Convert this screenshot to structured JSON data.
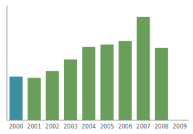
{
  "chart_data": {
    "type": "bar",
    "categories": [
      "2000",
      "2001",
      "2002",
      "2003",
      "2004",
      "2005",
      "2006",
      "2007",
      "2008",
      "2009"
    ],
    "values": [
      38,
      37,
      43,
      53,
      64,
      66,
      69,
      90,
      63,
      0
    ],
    "colors": [
      "#3a8fa0",
      "#6a9e5b",
      "#6a9e5b",
      "#6a9e5b",
      "#6a9e5b",
      "#6a9e5b",
      "#6a9e5b",
      "#6a9e5b",
      "#6a9e5b",
      "#6a9e5b"
    ],
    "ylim": [
      0,
      100
    ],
    "grid": false,
    "tick_labels": "x"
  }
}
